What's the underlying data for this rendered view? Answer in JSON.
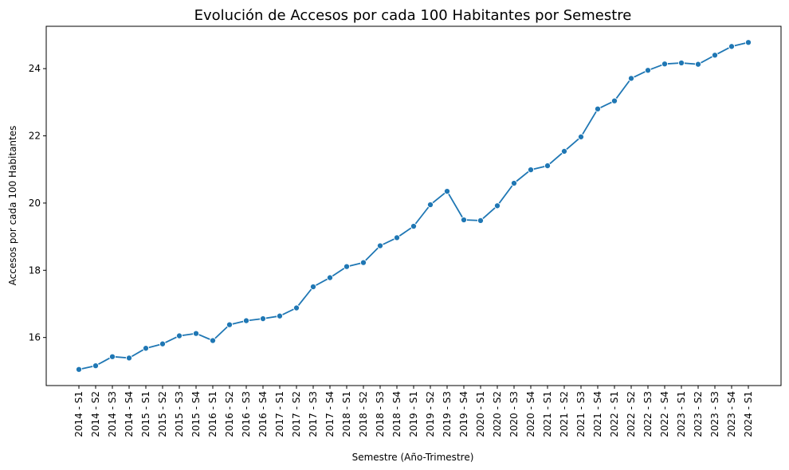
{
  "chart_data": {
    "type": "line",
    "title": "Evolución de Accesos por cada 100 Habitantes por Semestre",
    "xlabel": "Semestre (Año-Trimestre)",
    "ylabel": "Accesos por cada 100 Habitantes",
    "categories": [
      "2014 - S1",
      "2014 - S2",
      "2014 - S3",
      "2014 - S4",
      "2015 - S1",
      "2015 - S2",
      "2015 - S3",
      "2015 - S4",
      "2016 - S1",
      "2016 - S2",
      "2016 - S3",
      "2016 - S4",
      "2017 - S1",
      "2017 - S2",
      "2017 - S3",
      "2017 - S4",
      "2018 - S1",
      "2018 - S2",
      "2018 - S3",
      "2018 - S4",
      "2019 - S1",
      "2019 - S2",
      "2019 - S3",
      "2019 - S4",
      "2020 - S1",
      "2020 - S2",
      "2020 - S3",
      "2020 - S4",
      "2021 - S1",
      "2021 - S2",
      "2021 - S3",
      "2021 - S4",
      "2022 - S1",
      "2022 - S2",
      "2022 - S3",
      "2022 - S4",
      "2023 - S1",
      "2023 - S2",
      "2023 - S3",
      "2023 - S4",
      "2024 - S1"
    ],
    "series": [
      {
        "values": [
          15.05,
          15.16,
          15.43,
          15.39,
          15.68,
          15.81,
          16.05,
          16.12,
          15.91,
          16.38,
          16.5,
          16.56,
          16.64,
          16.88,
          17.51,
          17.78,
          18.11,
          18.23,
          18.73,
          18.97,
          19.31,
          19.95,
          20.35,
          19.5,
          19.48,
          19.92,
          20.59,
          20.99,
          21.11,
          21.54,
          21.97,
          22.8,
          23.04,
          23.71,
          23.95,
          24.14,
          24.17,
          24.13,
          24.4,
          24.66,
          24.78
        ]
      }
    ],
    "yticks": [
      16,
      18,
      20,
      22,
      24
    ],
    "ylim": [
      14.57,
      25.26
    ],
    "grid": false,
    "colors": {
      "line": "#1f77b4",
      "axis": "#000000"
    }
  }
}
